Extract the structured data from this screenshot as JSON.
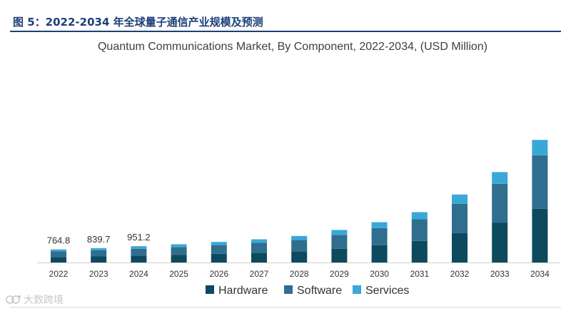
{
  "figure": {
    "caption": "图 5：2022-2034 年全球量子通信产业规模及预测"
  },
  "watermark": {
    "text": "大数跨境"
  },
  "colors": {
    "hardware": "#0d4a5e",
    "software": "#2f6e8e",
    "services": "#3aa7d9",
    "caption": "#1c3f7a",
    "axis": "#d0d0d0"
  },
  "chart_data": {
    "type": "bar",
    "stacked": true,
    "title": "Quantum Communications Market, By Component, 2022-2034, (USD Million)",
    "xlabel": "",
    "ylabel": "",
    "ylim": [
      0,
      10500
    ],
    "grid": false,
    "legend_position": "bottom",
    "categories": [
      "2022",
      "2023",
      "2024",
      "2025",
      "2026",
      "2027",
      "2028",
      "2029",
      "2030",
      "2031",
      "2032",
      "2033",
      "2034"
    ],
    "series": [
      {
        "name": "Hardware",
        "values": [
          322,
          354,
          401,
          452,
          508,
          573,
          655,
          805,
          1005,
          1260,
          1710,
          2330,
          3130
        ]
      },
      {
        "name": "Software",
        "values": [
          325,
          356,
          403,
          450,
          508,
          572,
          655,
          805,
          1005,
          1260,
          1720,
          2260,
          3130
        ]
      },
      {
        "name": "Services",
        "values": [
          118,
          130,
          147,
          164,
          185,
          209,
          240,
          290,
          345,
          420,
          540,
          690,
          900
        ]
      }
    ],
    "data_labels": [
      {
        "category": "2022",
        "text": "764.8"
      },
      {
        "category": "2023",
        "text": "839.7"
      },
      {
        "category": "2024",
        "text": "951.2"
      }
    ]
  }
}
